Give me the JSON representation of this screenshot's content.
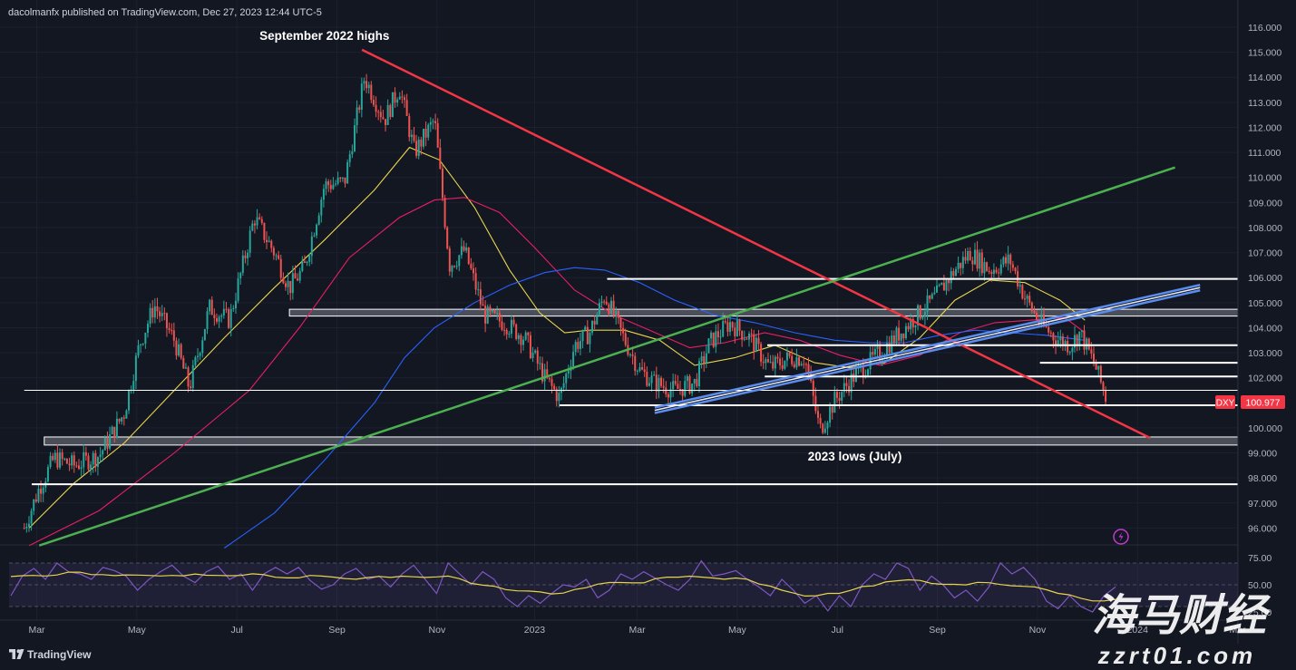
{
  "header": {
    "published": "dacolmanfx published on TradingView.com, Dec 27, 2023 12:44 UTC-5"
  },
  "footer": {
    "brand": "TradingView"
  },
  "watermark": {
    "cn": "海马财经",
    "url": "zzrt01.com"
  },
  "colors": {
    "background": "#131722",
    "text": "#d1d4dc",
    "up": "#26a69a",
    "down": "#ef5350",
    "ma_short": "#e8d44d",
    "ma_mid": "#e91e63",
    "ma_long": "#2962ff",
    "trend_red": "#f23645",
    "trend_green": "#4caf50",
    "trend_blue": "#5b8def",
    "rsi_line": "#7e57c2",
    "rsi_ma": "#e8d44d"
  },
  "chart_data": {
    "type": "candlestick",
    "symbol": "DXY",
    "last_price": "100.977",
    "price_axis": {
      "range": [
        95.2,
        116.5
      ],
      "ticks": [
        "116.000",
        "115.000",
        "114.000",
        "113.000",
        "112.000",
        "111.000",
        "110.000",
        "109.000",
        "108.000",
        "107.000",
        "106.000",
        "105.000",
        "104.000",
        "103.000",
        "102.000",
        "101.000",
        "100.000",
        "99.000",
        "98.000",
        "97.000",
        "96.000"
      ]
    },
    "time_axis": {
      "ticks": [
        "Mar",
        "May",
        "Jul",
        "Sep",
        "Nov",
        "2023",
        "Mar",
        "May",
        "Jul",
        "Sep",
        "Nov",
        "2024",
        "Mar"
      ],
      "range_months": [
        0,
        25
      ]
    },
    "annotations": [
      {
        "text": "September 2022 highs",
        "month": 6.0,
        "price": 115.5
      },
      {
        "text": "2023 lows (July)",
        "month": 16.6,
        "price": 98.7
      }
    ],
    "horizontal_levels": [
      {
        "price": 101.5,
        "from": 0,
        "to": 25,
        "thin": true
      },
      {
        "price": 97.75,
        "from": 0.15,
        "to": 25
      },
      {
        "price": 105.95,
        "from": 11.65,
        "to": 24.8
      },
      {
        "price": 103.3,
        "from": 14.85,
        "to": 24.8
      },
      {
        "price": 102.05,
        "from": 14.8,
        "to": 24.8
      },
      {
        "price": 100.9,
        "from": 10.7,
        "to": 24.8
      },
      {
        "price": 102.6,
        "from": 20.3,
        "to": 24.8
      }
    ],
    "zones": [
      {
        "from_price": 104.7,
        "to_price": 104.5,
        "from": 5.3,
        "to": 24.8
      },
      {
        "from_price": 99.6,
        "to_price": 99.35,
        "from": 0.4,
        "to": 24.8
      }
    ],
    "trendlines": [
      {
        "color": "trend_red",
        "from": [
          6.75,
          115.1
        ],
        "to": [
          22.5,
          99.6
        ]
      },
      {
        "color": "trend_green",
        "from": [
          0.3,
          95.3
        ],
        "to": [
          23.0,
          110.4
        ]
      },
      {
        "color": "trend_blue",
        "from": [
          12.6,
          100.7
        ],
        "to": [
          23.5,
          105.6
        ]
      }
    ],
    "close_path": [
      {
        "m": 0.0,
        "p": 96.0
      },
      {
        "m": 0.3,
        "p": 97.6
      },
      {
        "m": 0.6,
        "p": 98.8
      },
      {
        "m": 1.0,
        "p": 98.5
      },
      {
        "m": 1.5,
        "p": 98.9
      },
      {
        "m": 2.0,
        "p": 100.6
      },
      {
        "m": 2.3,
        "p": 103.3
      },
      {
        "m": 2.6,
        "p": 104.9
      },
      {
        "m": 3.0,
        "p": 103.5
      },
      {
        "m": 3.3,
        "p": 101.6
      },
      {
        "m": 3.7,
        "p": 104.8
      },
      {
        "m": 4.1,
        "p": 104.3
      },
      {
        "m": 4.6,
        "p": 108.4
      },
      {
        "m": 5.0,
        "p": 107.0
      },
      {
        "m": 5.3,
        "p": 105.6
      },
      {
        "m": 5.6,
        "p": 106.4
      },
      {
        "m": 6.0,
        "p": 109.7
      },
      {
        "m": 6.4,
        "p": 109.8
      },
      {
        "m": 6.8,
        "p": 114.0
      },
      {
        "m": 7.2,
        "p": 112.3
      },
      {
        "m": 7.5,
        "p": 113.6
      },
      {
        "m": 7.8,
        "p": 111.0
      },
      {
        "m": 8.2,
        "p": 112.3
      },
      {
        "m": 8.5,
        "p": 106.5
      },
      {
        "m": 8.8,
        "p": 107.1
      },
      {
        "m": 9.2,
        "p": 104.5
      },
      {
        "m": 9.6,
        "p": 104.2
      },
      {
        "m": 10.0,
        "p": 103.6
      },
      {
        "m": 10.4,
        "p": 102.0
      },
      {
        "m": 10.7,
        "p": 101.2
      },
      {
        "m": 11.0,
        "p": 103.3
      },
      {
        "m": 11.3,
        "p": 103.8
      },
      {
        "m": 11.6,
        "p": 105.3
      },
      {
        "m": 12.0,
        "p": 103.5
      },
      {
        "m": 12.3,
        "p": 102.3
      },
      {
        "m": 12.6,
        "p": 101.8
      },
      {
        "m": 13.0,
        "p": 101.5
      },
      {
        "m": 13.4,
        "p": 101.8
      },
      {
        "m": 13.7,
        "p": 103.4
      },
      {
        "m": 14.1,
        "p": 104.2
      },
      {
        "m": 14.5,
        "p": 103.6
      },
      {
        "m": 14.9,
        "p": 102.4
      },
      {
        "m": 15.3,
        "p": 102.8
      },
      {
        "m": 15.6,
        "p": 102.8
      },
      {
        "m": 15.9,
        "p": 99.9
      },
      {
        "m": 16.2,
        "p": 101.1
      },
      {
        "m": 16.6,
        "p": 102.1
      },
      {
        "m": 17.0,
        "p": 102.8
      },
      {
        "m": 17.4,
        "p": 103.6
      },
      {
        "m": 17.8,
        "p": 104.4
      },
      {
        "m": 18.2,
        "p": 105.2
      },
      {
        "m": 18.6,
        "p": 106.3
      },
      {
        "m": 18.9,
        "p": 107.0
      },
      {
        "m": 19.3,
        "p": 106.3
      },
      {
        "m": 19.7,
        "p": 106.7
      },
      {
        "m": 20.0,
        "p": 105.2
      },
      {
        "m": 20.3,
        "p": 104.2
      },
      {
        "m": 20.6,
        "p": 103.6
      },
      {
        "m": 20.9,
        "p": 103.3
      },
      {
        "m": 21.1,
        "p": 103.8
      },
      {
        "m": 21.4,
        "p": 102.5
      },
      {
        "m": 21.65,
        "p": 101.0
      }
    ],
    "moving_averages": [
      {
        "color": "ma_short",
        "points": [
          [
            0.1,
            96.0
          ],
          [
            1.0,
            97.8
          ],
          [
            2.0,
            99.4
          ],
          [
            3.0,
            101.5
          ],
          [
            4.0,
            103.6
          ],
          [
            5.0,
            105.6
          ],
          [
            6.0,
            107.5
          ],
          [
            7.0,
            109.5
          ],
          [
            7.7,
            111.2
          ],
          [
            8.3,
            110.7
          ],
          [
            9.0,
            108.8
          ],
          [
            9.7,
            106.3
          ],
          [
            10.3,
            104.6
          ],
          [
            10.8,
            103.8
          ],
          [
            11.3,
            103.9
          ],
          [
            12.0,
            103.9
          ],
          [
            12.7,
            103.5
          ],
          [
            13.4,
            102.5
          ],
          [
            14.2,
            102.8
          ],
          [
            15.0,
            103.3
          ],
          [
            15.8,
            102.6
          ],
          [
            16.5,
            102.4
          ],
          [
            17.2,
            102.6
          ],
          [
            17.9,
            103.6
          ],
          [
            18.6,
            105.1
          ],
          [
            19.3,
            105.9
          ],
          [
            20.0,
            105.8
          ],
          [
            20.7,
            105.1
          ],
          [
            21.2,
            104.3
          ]
        ]
      },
      {
        "color": "ma_mid",
        "points": [
          [
            0.1,
            95.3
          ],
          [
            1.5,
            96.7
          ],
          [
            3.0,
            99.0
          ],
          [
            4.5,
            101.5
          ],
          [
            5.5,
            104.0
          ],
          [
            6.5,
            106.8
          ],
          [
            7.5,
            108.4
          ],
          [
            8.2,
            109.1
          ],
          [
            8.8,
            109.2
          ],
          [
            9.5,
            108.6
          ],
          [
            10.2,
            107.2
          ],
          [
            11.0,
            105.5
          ],
          [
            11.8,
            104.5
          ],
          [
            12.5,
            103.9
          ],
          [
            13.3,
            103.2
          ],
          [
            14.0,
            103.4
          ],
          [
            14.8,
            103.8
          ],
          [
            15.5,
            103.5
          ],
          [
            16.3,
            102.9
          ],
          [
            17.1,
            102.5
          ],
          [
            17.9,
            102.9
          ],
          [
            18.7,
            103.8
          ],
          [
            19.4,
            104.2
          ],
          [
            20.1,
            104.3
          ],
          [
            20.8,
            104.4
          ],
          [
            21.2,
            103.8
          ]
        ]
      },
      {
        "color": "ma_long",
        "points": [
          [
            4.0,
            95.2
          ],
          [
            5.0,
            96.6
          ],
          [
            6.0,
            98.7
          ],
          [
            7.0,
            101.0
          ],
          [
            7.6,
            102.8
          ],
          [
            8.2,
            104.0
          ],
          [
            9.0,
            105.0
          ],
          [
            9.7,
            105.7
          ],
          [
            10.4,
            106.2
          ],
          [
            11.0,
            106.4
          ],
          [
            11.6,
            106.3
          ],
          [
            12.3,
            105.8
          ],
          [
            13.0,
            105.1
          ],
          [
            13.8,
            104.5
          ],
          [
            14.6,
            104.2
          ],
          [
            15.4,
            103.8
          ],
          [
            16.2,
            103.5
          ],
          [
            16.9,
            103.4
          ],
          [
            17.6,
            103.4
          ],
          [
            18.3,
            103.7
          ],
          [
            19.0,
            103.9
          ],
          [
            19.7,
            103.8
          ],
          [
            20.4,
            103.7
          ],
          [
            21.2,
            103.5
          ]
        ]
      }
    ],
    "rsi": {
      "range": [
        0,
        100
      ],
      "ticks": [
        "75.00",
        "50.00",
        "25.00"
      ],
      "band": [
        30,
        70
      ],
      "values": [
        40,
        58,
        65,
        55,
        70,
        62,
        60,
        55,
        66,
        63,
        58,
        45,
        55,
        62,
        68,
        58,
        52,
        62,
        67,
        55,
        60,
        45,
        60,
        66,
        60,
        66,
        54,
        46,
        50,
        60,
        65,
        55,
        58,
        48,
        60,
        68,
        55,
        42,
        70,
        60,
        50,
        62,
        55,
        38,
        30,
        40,
        33,
        42,
        50,
        48,
        55,
        38,
        45,
        60,
        55,
        62,
        56,
        50,
        45,
        55,
        72,
        58,
        60,
        63,
        55,
        48,
        40,
        55,
        45,
        33,
        40,
        26,
        40,
        30,
        50,
        60,
        55,
        70,
        65,
        45,
        58,
        50,
        38,
        45,
        35,
        48,
        70,
        60,
        66,
        55,
        35,
        28,
        40,
        30,
        25,
        40,
        48
      ]
    }
  }
}
